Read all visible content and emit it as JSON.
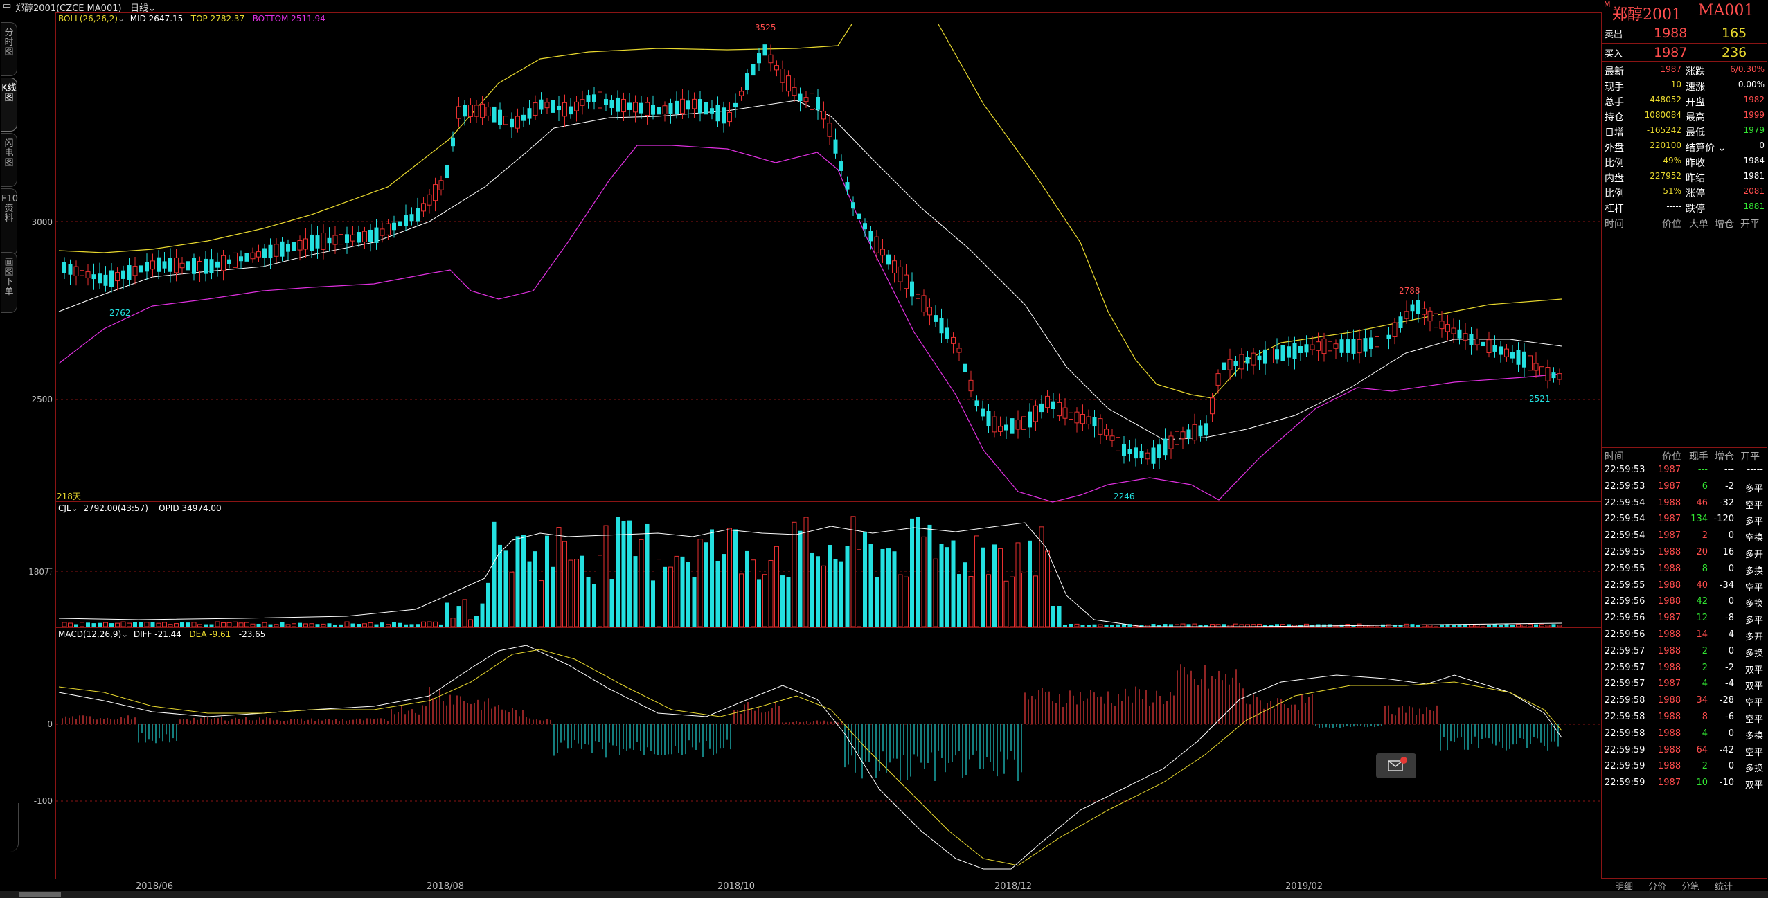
{
  "window": {
    "title": "郑醇2001(CZCE MA001)",
    "period": "日线"
  },
  "left_tabs": [
    {
      "label": "分时图",
      "active": false
    },
    {
      "label": "K线图",
      "active": true
    },
    {
      "label": "闪电图",
      "active": false
    },
    {
      "label": "F10资料",
      "active": false
    },
    {
      "label": "画图下单",
      "active": false
    }
  ],
  "main_chart": {
    "indicator": "BOLL(26,26,2)",
    "mid": "MID 2647.15",
    "top": "TOP 2782.37",
    "bottom": "BOTTOM 2511.94",
    "days_label": "218天",
    "y_axis": [
      "3000",
      "2500"
    ],
    "annotations": {
      "high": "3525",
      "low1": "2762",
      "low2": "2246",
      "high2": "2788",
      "low3": "2521"
    }
  },
  "volume_chart": {
    "indicator": "CJL",
    "value": "2792.00(43:57)",
    "opid": "OPID 34974.00",
    "y_axis": "180万"
  },
  "macd_chart": {
    "indicator": "MACD(12,26,9)",
    "diff": "DIFF -21.44",
    "dea": "DEA -9.61",
    "macd": "-23.65",
    "y_axis": [
      "0",
      "-100"
    ]
  },
  "x_axis": [
    "2018/06",
    "2018/08",
    "2018/10",
    "2018/12",
    "2019/02"
  ],
  "quote": {
    "name": "郑醇2001",
    "code": "MA001",
    "sell_label": "卖出",
    "sell_price": "1988",
    "sell_qty": "165",
    "buy_label": "买入",
    "buy_price": "1987",
    "buy_qty": "236",
    "fields": [
      {
        "k1": "最新",
        "v1": "1987",
        "c1": "red",
        "k2": "涨跌",
        "v2": "6/0.30%",
        "c2": "red"
      },
      {
        "k1": "现手",
        "v1": "10",
        "c1": "yellow",
        "k2": "速涨",
        "v2": "0.00%",
        "c2": "white"
      },
      {
        "k1": "总手",
        "v1": "448052",
        "c1": "yellow",
        "k2": "开盘",
        "v2": "1982",
        "c2": "red"
      },
      {
        "k1": "持仓",
        "v1": "1080084",
        "c1": "yellow",
        "k2": "最高",
        "v2": "1999",
        "c2": "red"
      },
      {
        "k1": "日增",
        "v1": "-165242",
        "c1": "yellow",
        "k2": "最低",
        "v2": "1979",
        "c2": "green"
      },
      {
        "k1": "外盘",
        "v1": "220100",
        "c1": "yellow",
        "k2": "结算价",
        "v2": "0",
        "c2": "white"
      },
      {
        "k1": "比例",
        "v1": "49%",
        "c1": "yellow",
        "k2": "昨收",
        "v2": "1984",
        "c2": "white"
      },
      {
        "k1": "内盘",
        "v1": "227952",
        "c1": "yellow",
        "k2": "昨结",
        "v2": "1981",
        "c2": "white"
      },
      {
        "k1": "比例",
        "v1": "51%",
        "c1": "yellow",
        "k2": "涨停",
        "v2": "2081",
        "c2": "red"
      },
      {
        "k1": "杠杆",
        "v1": "-----",
        "c1": "white",
        "k2": "跌停",
        "v2": "1881",
        "c2": "green"
      }
    ],
    "order_header": [
      "时间",
      "价位",
      "大单",
      "增仓",
      "开平"
    ],
    "tick_header": [
      "时间",
      "价位",
      "现手",
      "增仓",
      "开平"
    ],
    "ticks": [
      [
        "22:59:53",
        "1987",
        "---",
        "---",
        "-----"
      ],
      [
        "22:59:53",
        "1987",
        "6",
        "-2",
        "多平"
      ],
      [
        "22:59:54",
        "1988",
        "46",
        "-32",
        "空平"
      ],
      [
        "22:59:54",
        "1987",
        "134",
        "-120",
        "多平"
      ],
      [
        "22:59:54",
        "1987",
        "2",
        "0",
        "空换"
      ],
      [
        "22:59:55",
        "1988",
        "20",
        "16",
        "多开"
      ],
      [
        "22:59:55",
        "1988",
        "8",
        "0",
        "多换"
      ],
      [
        "22:59:55",
        "1988",
        "40",
        "-34",
        "空平"
      ],
      [
        "22:59:56",
        "1988",
        "42",
        "0",
        "多换"
      ],
      [
        "22:59:56",
        "1987",
        "12",
        "-8",
        "多平"
      ],
      [
        "22:59:56",
        "1988",
        "14",
        "4",
        "多开"
      ],
      [
        "22:59:57",
        "1988",
        "2",
        "0",
        "多换"
      ],
      [
        "22:59:57",
        "1988",
        "2",
        "-2",
        "双平"
      ],
      [
        "22:59:57",
        "1987",
        "4",
        "-4",
        "双平"
      ],
      [
        "22:59:58",
        "1988",
        "34",
        "-28",
        "空平"
      ],
      [
        "22:59:58",
        "1988",
        "8",
        "-6",
        "空平"
      ],
      [
        "22:59:58",
        "1988",
        "4",
        "0",
        "多换"
      ],
      [
        "22:59:59",
        "1988",
        "64",
        "-42",
        "空平"
      ],
      [
        "22:59:59",
        "1988",
        "2",
        "0",
        "多换"
      ],
      [
        "22:59:59",
        "1987",
        "10",
        "-10",
        "双平"
      ]
    ],
    "bottom_tabs": [
      "明细",
      "分价",
      "分笔",
      "统计"
    ]
  }
}
